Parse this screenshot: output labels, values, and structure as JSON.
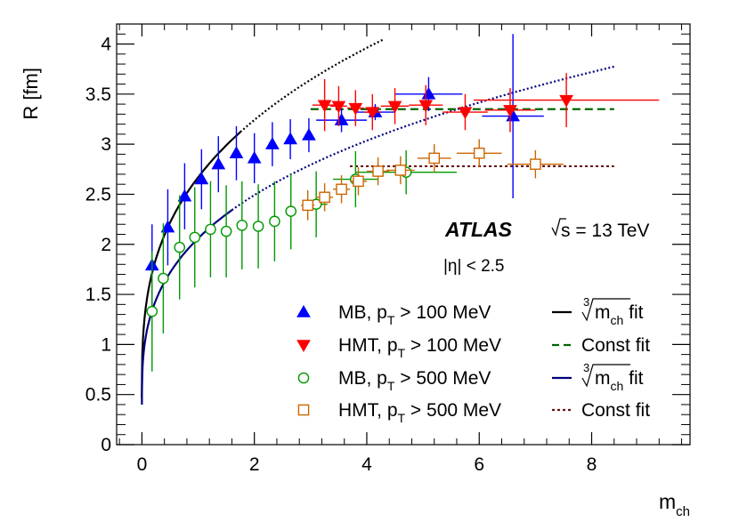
{
  "chart_data": {
    "type": "scatter",
    "title": "",
    "xlabel": "m",
    "xlabel_sub": "ch",
    "ylabel": "R [fm]",
    "xlim": [
      -0.45,
      9.75
    ],
    "ylim": [
      0,
      4.2
    ],
    "xticks": [
      0,
      2,
      4,
      6,
      8
    ],
    "yticks": [
      0,
      0.5,
      1,
      1.5,
      2,
      2.5,
      3,
      3.5,
      4
    ],
    "ytick_labels": [
      "0",
      "0.5",
      "1",
      "1.5",
      "2",
      "2.5",
      "3",
      "3.5",
      "4"
    ],
    "atlas": "ATLAS",
    "energy": "s = 13 TeV",
    "eta_cut": "|η| < 2.5",
    "series": [
      {
        "name": "MB, pT > 100 MeV",
        "marker": "triangle-up",
        "color": "#0000ff",
        "filled": true,
        "points": [
          {
            "x": 0.18,
            "y": 1.79,
            "yerr": 0.41,
            "xerr": 0
          },
          {
            "x": 0.46,
            "y": 2.17,
            "yerr": 0.38,
            "xerr": 0
          },
          {
            "x": 0.76,
            "y": 2.48,
            "yerr": 0.33,
            "xerr": 0
          },
          {
            "x": 1.06,
            "y": 2.65,
            "yerr": 0.3,
            "xerr": 0
          },
          {
            "x": 1.36,
            "y": 2.8,
            "yerr": 0.28,
            "xerr": 0
          },
          {
            "x": 1.68,
            "y": 2.91,
            "yerr": 0.27,
            "xerr": 0
          },
          {
            "x": 2.0,
            "y": 2.86,
            "yerr": 0.25,
            "xerr": 0
          },
          {
            "x": 2.32,
            "y": 3.0,
            "yerr": 0.22,
            "xerr": 0
          },
          {
            "x": 2.64,
            "y": 3.05,
            "yerr": 0.2,
            "xerr": 0
          },
          {
            "x": 2.97,
            "y": 3.09,
            "yerr": 0.17,
            "xerr": 0
          },
          {
            "x": 3.55,
            "y": 3.24,
            "yerr": 0.12,
            "xerr": 0.45
          },
          {
            "x": 4.15,
            "y": 3.32,
            "yerr": 0.08,
            "xerr": 0.35
          },
          {
            "x": 5.1,
            "y": 3.5,
            "yerr": 0.17,
            "xerr": 0.6
          },
          {
            "x": 6.6,
            "y": 3.28,
            "yerr": 0.82,
            "xerr": 0.55
          }
        ]
      },
      {
        "name": "HMT, pT > 100 MeV",
        "marker": "triangle-down",
        "color": "#ff0000",
        "filled": true,
        "points": [
          {
            "x": 3.25,
            "y": 3.39,
            "yerr": 0.26,
            "xerr": 0.22
          },
          {
            "x": 3.5,
            "y": 3.38,
            "yerr": 0.2,
            "xerr": 0.15
          },
          {
            "x": 3.8,
            "y": 3.36,
            "yerr": 0.18,
            "xerr": 0.15
          },
          {
            "x": 4.1,
            "y": 3.32,
            "yerr": 0.18,
            "xerr": 0.15
          },
          {
            "x": 4.5,
            "y": 3.38,
            "yerr": 0.18,
            "xerr": 0.25
          },
          {
            "x": 5.05,
            "y": 3.39,
            "yerr": 0.2,
            "xerr": 0.3
          },
          {
            "x": 5.75,
            "y": 3.32,
            "yerr": 0.18,
            "xerr": 0.4
          },
          {
            "x": 6.55,
            "y": 3.34,
            "yerr": 0.22,
            "xerr": 0.45
          },
          {
            "x": 7.55,
            "y": 3.44,
            "yerr": 0.27,
            "xerr": 1.65
          }
        ]
      },
      {
        "name": "MB, pT > 500 MeV",
        "marker": "circle-open",
        "color": "#009900",
        "filled": false,
        "points": [
          {
            "x": 0.18,
            "y": 1.33,
            "yerr": 0.6,
            "xerr": 0
          },
          {
            "x": 0.38,
            "y": 1.66,
            "yerr": 0.55,
            "xerr": 0
          },
          {
            "x": 0.67,
            "y": 1.97,
            "yerr": 0.52,
            "xerr": 0
          },
          {
            "x": 0.94,
            "y": 2.07,
            "yerr": 0.5,
            "xerr": 0
          },
          {
            "x": 1.22,
            "y": 2.15,
            "yerr": 0.48,
            "xerr": 0
          },
          {
            "x": 1.5,
            "y": 2.13,
            "yerr": 0.46,
            "xerr": 0
          },
          {
            "x": 1.78,
            "y": 2.19,
            "yerr": 0.44,
            "xerr": 0
          },
          {
            "x": 2.07,
            "y": 2.18,
            "yerr": 0.42,
            "xerr": 0
          },
          {
            "x": 2.36,
            "y": 2.23,
            "yerr": 0.4,
            "xerr": 0
          },
          {
            "x": 2.65,
            "y": 2.33,
            "yerr": 0.38,
            "xerr": 0
          },
          {
            "x": 3.1,
            "y": 2.4,
            "yerr": 0.33,
            "xerr": 0.2
          },
          {
            "x": 3.8,
            "y": 2.65,
            "yerr": 0.28,
            "xerr": 0.4
          },
          {
            "x": 4.7,
            "y": 2.72,
            "yerr": 0.22,
            "xerr": 0.9
          }
        ]
      },
      {
        "name": "HMT, pT > 500 MeV",
        "marker": "square-open",
        "color": "#cc6600",
        "filled": false,
        "points": [
          {
            "x": 2.95,
            "y": 2.39,
            "yerr": 0.15,
            "xerr": 0.12
          },
          {
            "x": 3.25,
            "y": 2.47,
            "yerr": 0.14,
            "xerr": 0.15
          },
          {
            "x": 3.55,
            "y": 2.55,
            "yerr": 0.14,
            "xerr": 0.15
          },
          {
            "x": 3.85,
            "y": 2.63,
            "yerr": 0.14,
            "xerr": 0.15
          },
          {
            "x": 4.2,
            "y": 2.73,
            "yerr": 0.14,
            "xerr": 0.2
          },
          {
            "x": 4.6,
            "y": 2.74,
            "yerr": 0.14,
            "xerr": 0.25
          },
          {
            "x": 5.2,
            "y": 2.86,
            "yerr": 0.14,
            "xerr": 0.3
          },
          {
            "x": 6.0,
            "y": 2.91,
            "yerr": 0.14,
            "xerr": 0.4
          },
          {
            "x": 7.0,
            "y": 2.8,
            "yerr": 0.14,
            "xerr": 0.5
          }
        ]
      }
    ],
    "fits": [
      {
        "name": "MB 100 cube-root fit",
        "kind": "cbrt",
        "a": 0.47,
        "b": 2.2,
        "solid_range": [
          0,
          1.75
        ],
        "dotted_range": [
          1.75,
          4.3
        ],
        "color": "#000000"
      },
      {
        "name": "MB 500 cube-root fit",
        "kind": "cbrt",
        "a": 0.4,
        "b": 1.66,
        "solid_range": [
          0,
          1.6
        ],
        "dotted_range": [
          1.6,
          8.4
        ],
        "color": "#000080"
      },
      {
        "name": "HMT 100 const fit",
        "kind": "const",
        "value": 3.35,
        "range": [
          3.0,
          8.4
        ],
        "color": "#006600",
        "dash": "dashed"
      },
      {
        "name": "HMT 500 const fit",
        "kind": "const",
        "value": 2.78,
        "range": [
          3.7,
          8.4
        ],
        "color": "#661111",
        "dash": "dotted"
      }
    ]
  },
  "legend": {
    "left": [
      {
        "label": "MB, p",
        "sub": "T",
        "rest": " > 100 MeV",
        "marker": "triangle-up",
        "color": "#0000ff"
      },
      {
        "label": "HMT, p",
        "sub": "T",
        "rest": " > 100 MeV",
        "marker": "triangle-down",
        "color": "#ff0000"
      },
      {
        "label": "MB, p",
        "sub": "T",
        "rest": " > 500 MeV",
        "marker": "circle-open",
        "color": "#009900"
      },
      {
        "label": "HMT, p",
        "sub": "T",
        "rest": " > 500 MeV",
        "marker": "square-open",
        "color": "#cc6600"
      }
    ],
    "right": [
      {
        "label": "m",
        "sub": "ch",
        "rest": " fit",
        "root": "3",
        "color": "#000000",
        "style": "solid"
      },
      {
        "label": "Const fit",
        "color": "#006600",
        "style": "dashed"
      },
      {
        "label": "m",
        "sub": "ch",
        "rest": " fit",
        "root": "3",
        "color": "#000080",
        "style": "solid"
      },
      {
        "label": "Const fit",
        "color": "#661111",
        "style": "dotted"
      }
    ]
  }
}
